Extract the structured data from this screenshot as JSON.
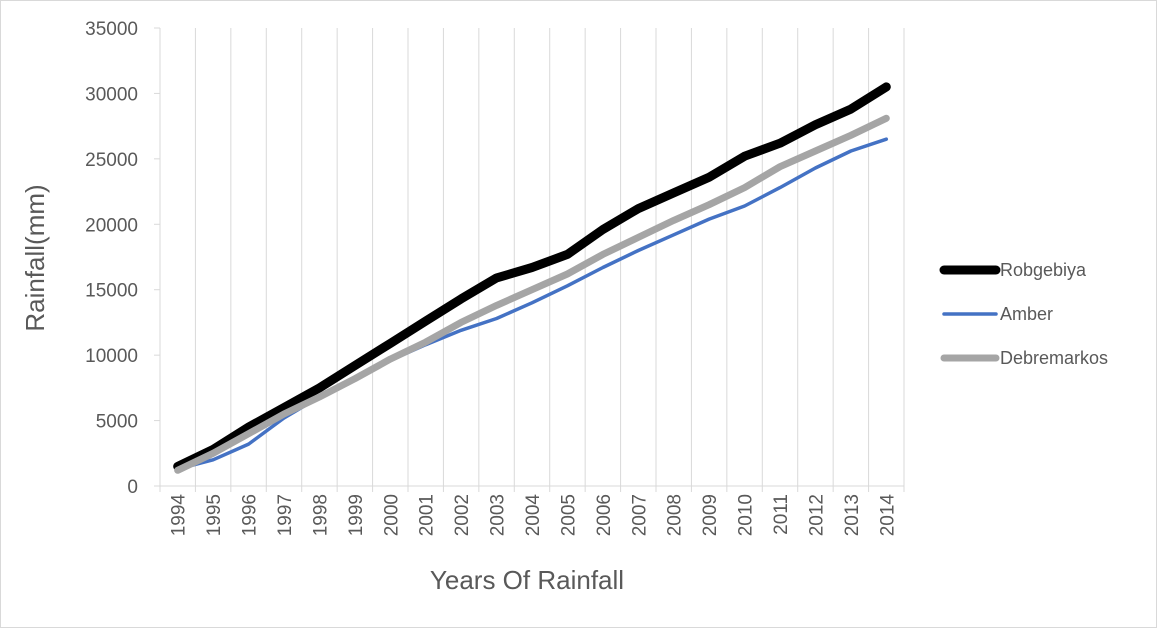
{
  "chart_data": {
    "type": "line",
    "title": "",
    "xlabel": "Years Of Rainfall",
    "ylabel": "Rainfall(mm)",
    "categories": [
      "1994",
      "1995",
      "1996",
      "1997",
      "1998",
      "1999",
      "2000",
      "2001",
      "2002",
      "2003",
      "2004",
      "2005",
      "2006",
      "2007",
      "2008",
      "2009",
      "2010",
      "2011",
      "2012",
      "2013",
      "2014"
    ],
    "ylim": [
      0,
      35000
    ],
    "yticks": [
      0,
      5000,
      10000,
      15000,
      20000,
      25000,
      30000,
      35000
    ],
    "grid": "vertical",
    "legend_position": "right",
    "series": [
      {
        "name": "Robgebiya",
        "color": "#000000",
        "values": [
          1500,
          2800,
          4500,
          6000,
          7500,
          9200,
          10900,
          12600,
          14300,
          15900,
          16700,
          17700,
          19600,
          21200,
          22400,
          23600,
          25200,
          26200,
          27600,
          28800,
          30500
        ]
      },
      {
        "name": "Amber",
        "color": "#4472c4",
        "values": [
          1300,
          2000,
          3200,
          5200,
          6800,
          8100,
          9600,
          10800,
          11900,
          12800,
          14000,
          15300,
          16700,
          18000,
          19200,
          20400,
          21400,
          22800,
          24300,
          25600,
          26500
        ]
      },
      {
        "name": "Debremarkos",
        "color": "#a5a5a5",
        "values": [
          1200,
          2500,
          4000,
          5500,
          6800,
          8200,
          9700,
          11000,
          12500,
          13800,
          15000,
          16200,
          17700,
          19000,
          20300,
          21500,
          22800,
          24400,
          25600,
          26800,
          28100
        ]
      }
    ]
  }
}
